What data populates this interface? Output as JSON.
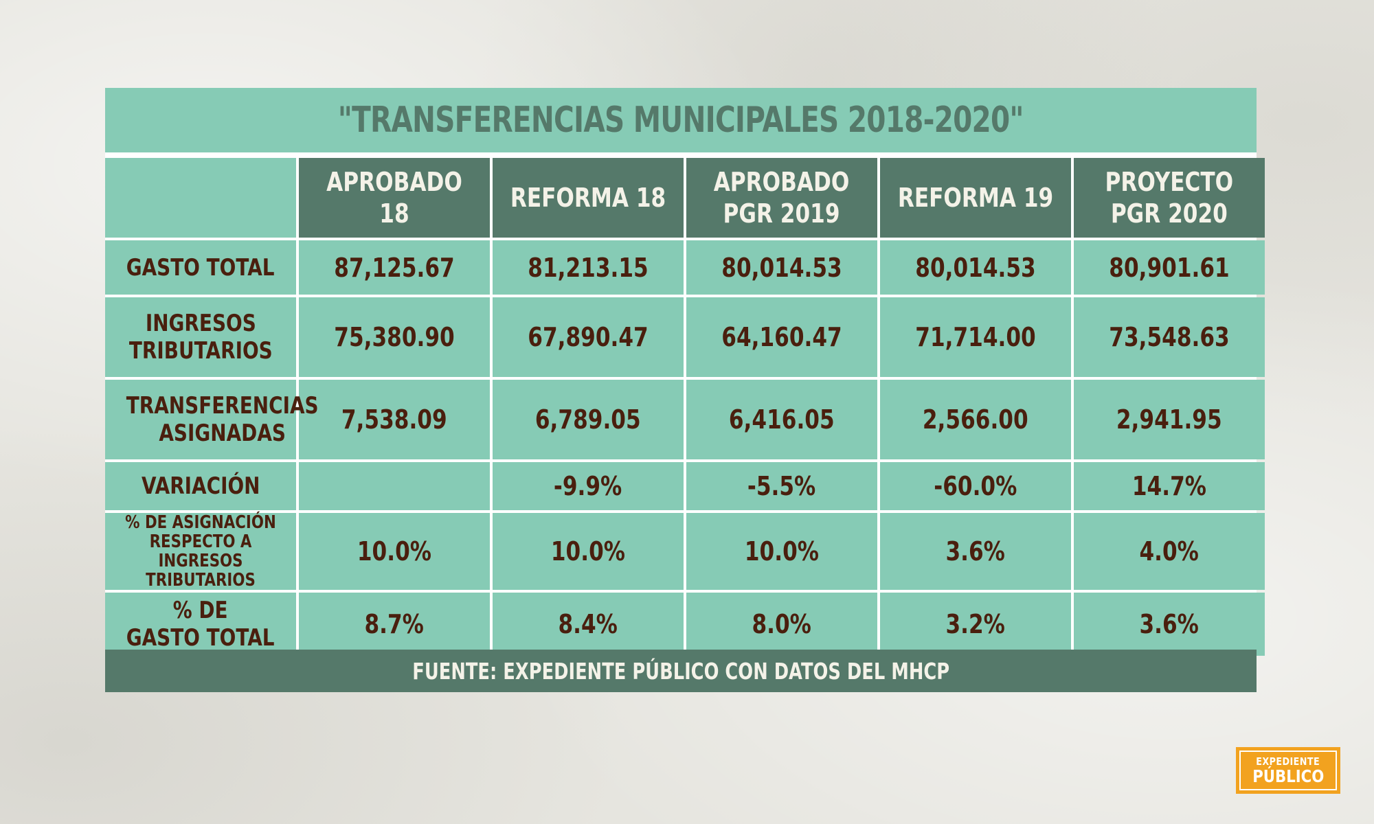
{
  "title": "\"TRANSFERENCIAS MUNICIPALES 2018-2020\"",
  "columns": [
    "APROBADO 18",
    "REFORMA 18",
    "APROBADO\nPGR 2019",
    "REFORMA 19",
    "PROYECTO\nPGR 2020"
  ],
  "rows": [
    {
      "label": "GASTO TOTAL",
      "values": [
        "87,125.67",
        "81,213.15",
        "80,014.53",
        "80,014.53",
        "80,901.61"
      ]
    },
    {
      "label": "INGRESOS\nTRIBUTARIOS",
      "values": [
        "75,380.90",
        "67,890.47",
        "64,160.47",
        "71,714.00",
        "73,548.63"
      ]
    },
    {
      "label": "TRANSFERENCIAS\nASIGNADAS",
      "values": [
        "7,538.09",
        "6,789.05",
        "6,416.05",
        "2,566.00",
        "2,941.95"
      ]
    },
    {
      "label": "VARIACIÓN",
      "values": [
        "",
        "-9.9%",
        "-5.5%",
        "-60.0%",
        "14.7%"
      ]
    },
    {
      "label": "% DE ASIGNACIÓN\nRESPECTO A INGRESOS\nTRIBUTARIOS",
      "values": [
        "10.0%",
        "10.0%",
        "10.0%",
        "3.6%",
        "4.0%"
      ]
    },
    {
      "label": "% DE\nGASTO TOTAL",
      "values": [
        "8.7%",
        "8.4%",
        "8.0%",
        "3.2%",
        "3.6%"
      ]
    }
  ],
  "source": "FUENTE: EXPEDIENTE PÚBLICO CON DATOS DEL MHCP",
  "logo": {
    "line1": "EXPEDIENTE",
    "line2": "PÚBLICO"
  },
  "colors": {
    "teal_light": "#86cbb5",
    "teal_dark": "#55796a",
    "text_brown": "#4a1f0e",
    "logo_orange": "#f2a21f"
  }
}
